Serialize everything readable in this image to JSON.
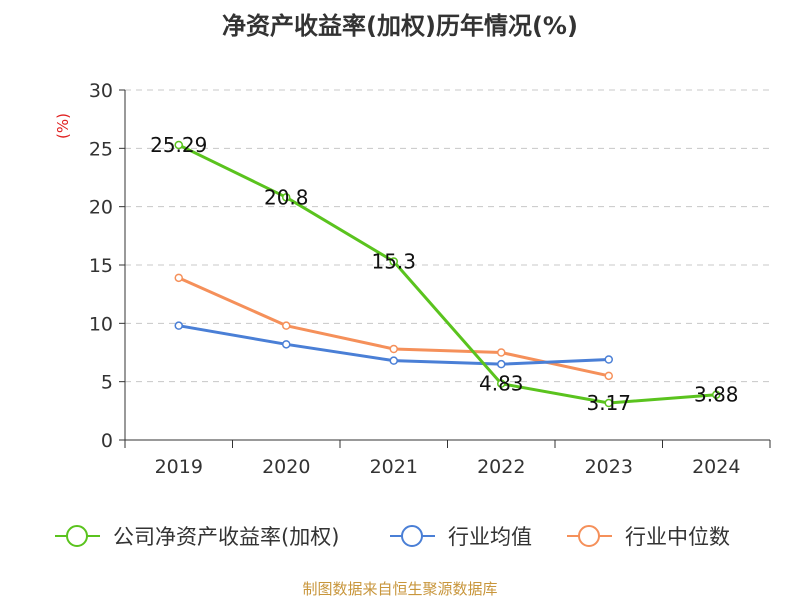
{
  "title": "净资产收益率(加权)历年情况(%)",
  "source_note": "制图数据来自恒生聚源数据库",
  "chart_data": {
    "type": "line",
    "title": "净资产收益率(加权)历年情况(%)",
    "ylabel": "(%)",
    "xlabel": "",
    "ylim": [
      0,
      30
    ],
    "yticks": [
      "0",
      "5",
      "10",
      "15",
      "20",
      "25",
      "30"
    ],
    "categories": [
      "2019",
      "2020",
      "2021",
      "2022",
      "2023",
      "2024"
    ],
    "grid": true,
    "legend_position": "bottom",
    "series": [
      {
        "name": "公司净资产收益率(加权)",
        "color": "#5ac31e",
        "values": [
          25.29,
          20.8,
          15.3,
          4.83,
          3.17,
          3.88
        ],
        "labels": [
          "25.29",
          "20.8",
          "15.3",
          "4.83",
          "3.17",
          "3.88"
        ]
      },
      {
        "name": "行业均值",
        "color": "#4a7fd6",
        "values": [
          9.8,
          8.2,
          6.8,
          6.5,
          6.9,
          null
        ]
      },
      {
        "name": "行业中位数",
        "color": "#f5905a",
        "values": [
          13.9,
          9.8,
          7.8,
          7.5,
          5.5,
          null
        ]
      }
    ]
  }
}
